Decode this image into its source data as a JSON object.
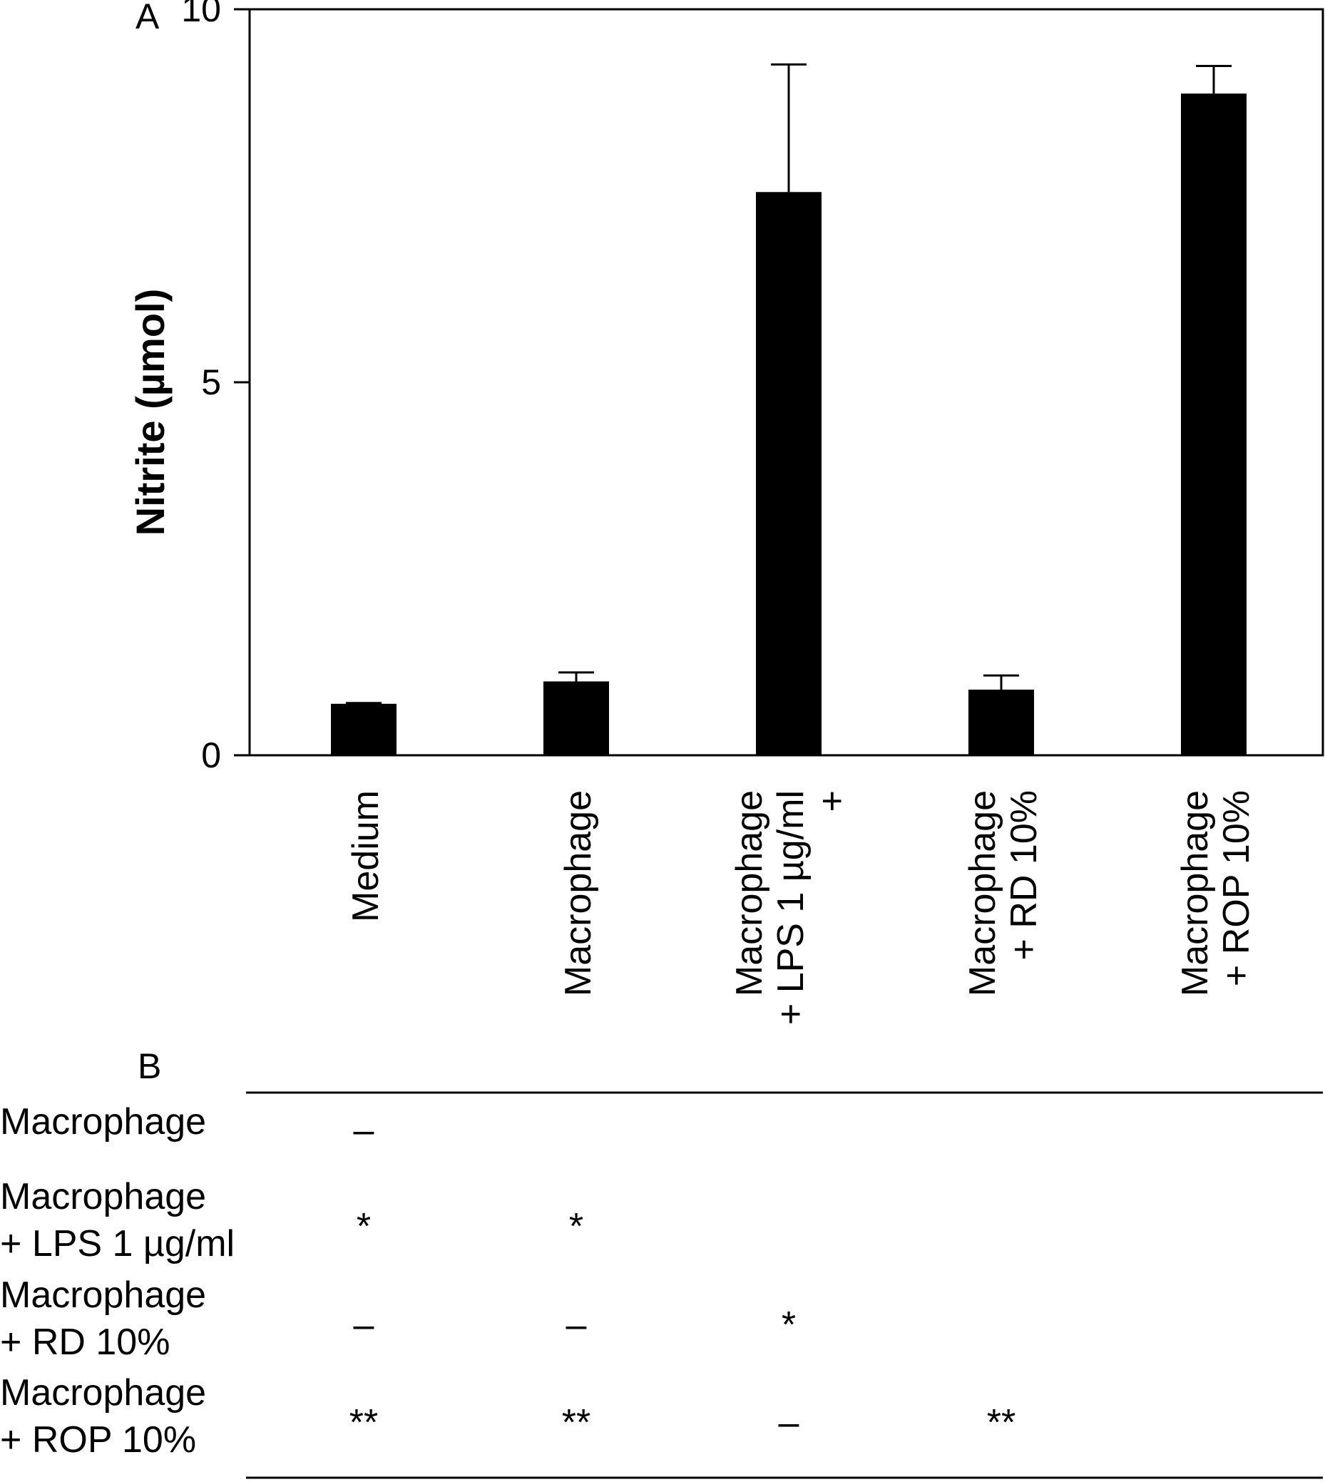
{
  "chart_data": {
    "type": "bar",
    "panel_label": "A",
    "ylabel": "Nitrite  (µmol)",
    "ylim": [
      0,
      10
    ],
    "yticks": [
      0,
      5,
      10
    ],
    "categories": [
      [
        "Medium"
      ],
      [
        "Macrophage"
      ],
      [
        "Macrophage",
        "+ LPS 1 µg/ml",
        "+"
      ],
      [
        "Macrophage",
        "+ RD 10%"
      ],
      [
        "Macrophage",
        "+ ROP 10%"
      ]
    ],
    "values": [
      0.69,
      0.99,
      7.55,
      0.88,
      8.87
    ],
    "errors": [
      0.01,
      0.12,
      1.71,
      0.19,
      0.37
    ],
    "colors": {
      "bar": "#000000",
      "axis": "#000000",
      "background": "#ffffff"
    }
  },
  "table": {
    "panel_label": "B",
    "rows": [
      {
        "label": [
          "Macrophage"
        ],
        "cells": [
          "–",
          "",
          "",
          ""
        ]
      },
      {
        "label": [
          "Macrophage",
          " + LPS 1 µg/ml"
        ],
        "cells": [
          "*",
          "*",
          "",
          ""
        ]
      },
      {
        "label": [
          "Macrophage",
          " + RD 10%"
        ],
        "cells": [
          "–",
          "–",
          "*",
          ""
        ]
      },
      {
        "label": [
          "Macrophage",
          " + ROP 10%"
        ],
        "cells": [
          "**",
          "**",
          "–",
          "**"
        ]
      }
    ]
  }
}
